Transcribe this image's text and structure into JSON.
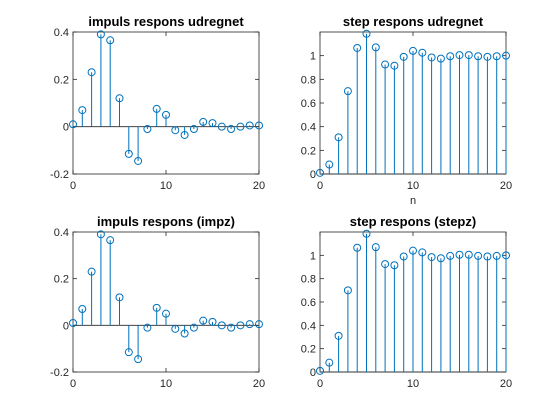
{
  "figure": {
    "stem_color": "#0072bd"
  },
  "chart_data": [
    {
      "type": "stem",
      "title": "impuls respons udregnet",
      "xlabel": "",
      "ylabel": "",
      "xlim": [
        0,
        20
      ],
      "ylim": [
        -0.2,
        0.4
      ],
      "xticks": [
        0,
        10,
        20
      ],
      "yticks": [
        -0.2,
        0,
        0.2,
        0.4
      ],
      "xtick_labels": [
        "0",
        "10",
        "20"
      ],
      "ytick_labels": [
        "-0.2",
        "0",
        "0.2",
        "0.4"
      ],
      "x": [
        0,
        1,
        2,
        3,
        4,
        5,
        6,
        7,
        8,
        9,
        10,
        11,
        12,
        13,
        14,
        15,
        16,
        17,
        18,
        19,
        20
      ],
      "values": [
        0.01,
        0.07,
        0.23,
        0.39,
        0.365,
        0.12,
        -0.115,
        -0.145,
        -0.01,
        0.075,
        0.05,
        -0.015,
        -0.035,
        -0.01,
        0.02,
        0.015,
        0.0,
        -0.01,
        0.0,
        0.005,
        0.005
      ],
      "grid": false
    },
    {
      "type": "stem",
      "title": "step respons udregnet",
      "xlabel": "n",
      "ylabel": "",
      "xlim": [
        0,
        20
      ],
      "ylim": [
        0,
        1.2
      ],
      "xticks": [
        0,
        10,
        20
      ],
      "yticks": [
        0,
        0.2,
        0.4,
        0.6,
        0.8,
        1
      ],
      "xtick_labels": [
        "0",
        "10",
        "20"
      ],
      "ytick_labels": [
        "0",
        "0.2",
        "0.4",
        "0.6",
        "0.8",
        "1"
      ],
      "x": [
        0,
        1,
        2,
        3,
        4,
        5,
        6,
        7,
        8,
        9,
        10,
        11,
        12,
        13,
        14,
        15,
        16,
        17,
        18,
        19,
        20
      ],
      "values": [
        0.01,
        0.08,
        0.31,
        0.7,
        1.065,
        1.185,
        1.07,
        0.925,
        0.915,
        0.99,
        1.04,
        1.025,
        0.985,
        0.975,
        0.995,
        1.005,
        1.005,
        0.995,
        0.99,
        0.995,
        1.0
      ],
      "grid": false
    },
    {
      "type": "stem",
      "title": "impuls respons (impz)",
      "xlabel": "",
      "ylabel": "",
      "xlim": [
        0,
        20
      ],
      "ylim": [
        -0.2,
        0.4
      ],
      "xticks": [
        0,
        10,
        20
      ],
      "yticks": [
        -0.2,
        0,
        0.2,
        0.4
      ],
      "xtick_labels": [
        "0",
        "10",
        "20"
      ],
      "ytick_labels": [
        "-0.2",
        "0",
        "0.2",
        "0.4"
      ],
      "x": [
        0,
        1,
        2,
        3,
        4,
        5,
        6,
        7,
        8,
        9,
        10,
        11,
        12,
        13,
        14,
        15,
        16,
        17,
        18,
        19,
        20
      ],
      "values": [
        0.01,
        0.07,
        0.23,
        0.39,
        0.365,
        0.12,
        -0.115,
        -0.145,
        -0.01,
        0.075,
        0.05,
        -0.015,
        -0.035,
        -0.01,
        0.02,
        0.015,
        0.0,
        -0.01,
        0.0,
        0.005,
        0.005
      ],
      "grid": false
    },
    {
      "type": "stem",
      "title": "step respons (stepz)",
      "xlabel": "",
      "ylabel": "",
      "xlim": [
        0,
        20
      ],
      "ylim": [
        0,
        1.2
      ],
      "xticks": [
        0,
        10,
        20
      ],
      "yticks": [
        0,
        0.2,
        0.4,
        0.6,
        0.8,
        1
      ],
      "xtick_labels": [
        "0",
        "10",
        "20"
      ],
      "ytick_labels": [
        "0",
        "0.2",
        "0.4",
        "0.6",
        "0.8",
        "1"
      ],
      "x": [
        0,
        1,
        2,
        3,
        4,
        5,
        6,
        7,
        8,
        9,
        10,
        11,
        12,
        13,
        14,
        15,
        16,
        17,
        18,
        19,
        20
      ],
      "values": [
        0.01,
        0.08,
        0.31,
        0.7,
        1.065,
        1.185,
        1.07,
        0.925,
        0.915,
        0.99,
        1.04,
        1.025,
        0.985,
        0.975,
        0.995,
        1.005,
        1.005,
        0.995,
        0.99,
        0.995,
        1.0
      ],
      "grid": false
    }
  ]
}
